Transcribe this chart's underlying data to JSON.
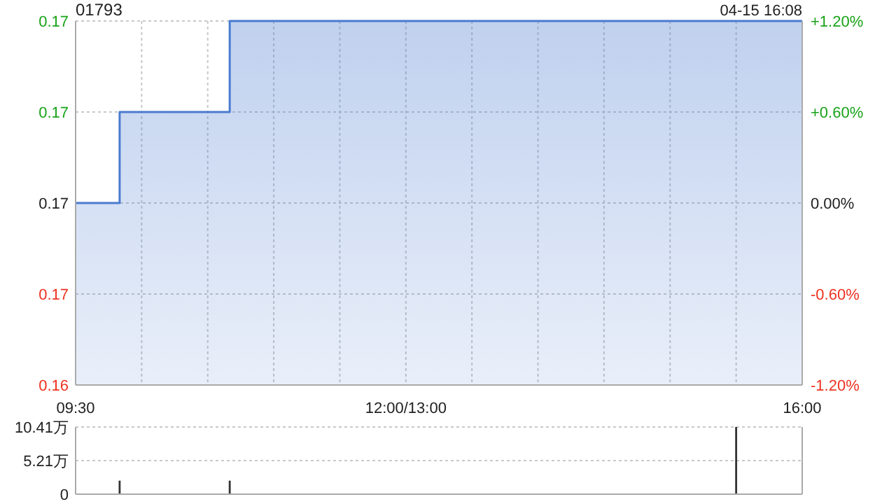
{
  "chart_data": [
    {
      "type": "step",
      "title": "01793",
      "annotations": [
        "04-15 16:08"
      ],
      "categories": [
        "09:30",
        null,
        null,
        null,
        null,
        null,
        null,
        null,
        null,
        null,
        null,
        null,
        null,
        null,
        null,
        "12:00/13:00",
        null,
        null,
        null,
        null,
        null,
        null,
        null,
        null,
        null,
        null,
        null,
        null,
        null,
        null,
        null,
        null,
        null,
        "16:00"
      ],
      "series": [
        {
          "color": "#4a7bd0",
          "axis": "y2",
          "values": [
            0,
            0,
            0.6,
            0.6,
            0.6,
            0.6,
            0.6,
            1.2,
            1.2,
            1.2,
            1.2,
            1.2,
            1.2,
            1.2,
            1.2,
            1.2,
            1.2,
            1.2,
            1.2,
            1.2,
            1.2,
            1.2,
            1.2,
            1.2,
            1.2,
            1.2,
            1.2,
            1.2,
            1.2,
            1.2,
            1.2,
            1.2,
            1.2,
            1.2
          ]
        }
      ],
      "ylim": [
        0.164,
        0.168
      ],
      "yticks": [
        {
          "value": 0.164,
          "label": "0.16"
        },
        {
          "value": 0.165,
          "label": "0.17"
        },
        {
          "value": 0.166,
          "label": "0.17"
        },
        {
          "value": 0.167,
          "label": "0.17"
        },
        {
          "value": 0.168,
          "label": "0.17"
        }
      ],
      "y2lim": [
        -1.2,
        1.2
      ],
      "y2ticks": [
        {
          "value": -1.2,
          "label": "-1.20%"
        },
        {
          "value": -0.6,
          "label": "-0.60%"
        },
        {
          "value": 0,
          "label": "0.00%"
        },
        {
          "value": 0.6,
          "label": "+0.60%"
        },
        {
          "value": 1.2,
          "label": "+1.20%"
        }
      ],
      "grid": true
    },
    {
      "type": "bar",
      "categories": [
        null,
        null,
        null,
        null,
        null,
        null,
        null,
        null,
        null,
        null,
        null,
        null,
        null,
        null,
        null,
        null,
        null,
        null,
        null,
        null,
        null,
        null,
        null,
        null,
        null,
        null,
        null,
        null,
        null,
        null,
        null,
        null,
        null,
        null
      ],
      "values": [
        null,
        null,
        2.1,
        null,
        null,
        null,
        null,
        2.1,
        null,
        null,
        null,
        null,
        null,
        null,
        null,
        null,
        null,
        null,
        null,
        null,
        null,
        null,
        null,
        null,
        null,
        null,
        null,
        null,
        null,
        null,
        10.41,
        null,
        null,
        null
      ],
      "color": "#333333",
      "ylim": [
        0,
        10.41
      ],
      "yticks": [
        0,
        {
          "value": 5.21,
          "label": "5.21万"
        },
        {
          "value": 10.41,
          "label": "10.41万"
        }
      ],
      "tick_labels": "y",
      "grid": "y"
    }
  ]
}
